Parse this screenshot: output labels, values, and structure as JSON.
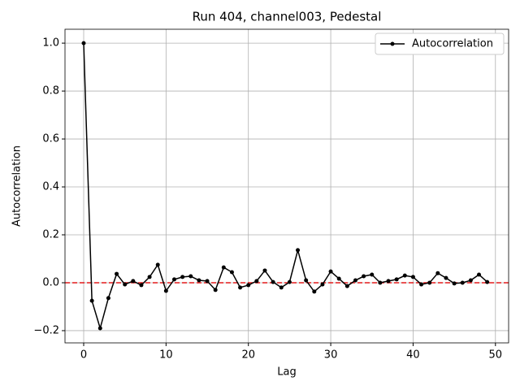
{
  "chart_data": {
    "type": "line",
    "title": "Run 404, channel003, Pedestal",
    "xlabel": "Lag",
    "ylabel": "Autocorrelation",
    "x": [
      0,
      1,
      2,
      3,
      4,
      5,
      6,
      7,
      8,
      9,
      10,
      11,
      12,
      13,
      14,
      15,
      16,
      17,
      18,
      19,
      20,
      21,
      22,
      23,
      24,
      25,
      26,
      27,
      28,
      29,
      30,
      31,
      32,
      33,
      34,
      35,
      36,
      37,
      38,
      39,
      40,
      41,
      42,
      43,
      44,
      45,
      46,
      47,
      48,
      49
    ],
    "series": [
      {
        "name": "Autocorrelation",
        "color": "#000000",
        "values": [
          1.0,
          -0.075,
          -0.19,
          -0.064,
          0.037,
          -0.007,
          0.007,
          -0.01,
          0.024,
          0.075,
          -0.034,
          0.014,
          0.024,
          0.027,
          0.01,
          0.007,
          -0.03,
          0.064,
          0.044,
          -0.02,
          -0.01,
          0.007,
          0.051,
          0.003,
          -0.02,
          0.003,
          0.136,
          0.01,
          -0.037,
          -0.007,
          0.047,
          0.017,
          -0.014,
          0.01,
          0.027,
          0.034,
          0.0,
          0.007,
          0.014,
          0.03,
          0.024,
          -0.007,
          0.0,
          0.04,
          0.02,
          -0.003,
          0.0,
          0.01,
          0.034,
          0.003
        ]
      }
    ],
    "hline": {
      "value": 0,
      "color": "#e31a1c"
    },
    "xlim": [
      -2.27,
      51.6
    ],
    "ylim": [
      -0.251,
      1.058
    ],
    "xticks": [
      0,
      10,
      20,
      30,
      40,
      50
    ],
    "yticks": [
      {
        "value": -0.2,
        "label": "−0.2"
      },
      {
        "value": 0.0,
        "label": "0.0"
      },
      {
        "value": 0.2,
        "label": "0.2"
      },
      {
        "value": 0.4,
        "label": "0.4"
      },
      {
        "value": 0.6,
        "label": "0.6"
      },
      {
        "value": 0.8,
        "label": "0.8"
      },
      {
        "value": 1.0,
        "label": "1.0"
      }
    ],
    "grid": true,
    "legend": "upper right"
  }
}
